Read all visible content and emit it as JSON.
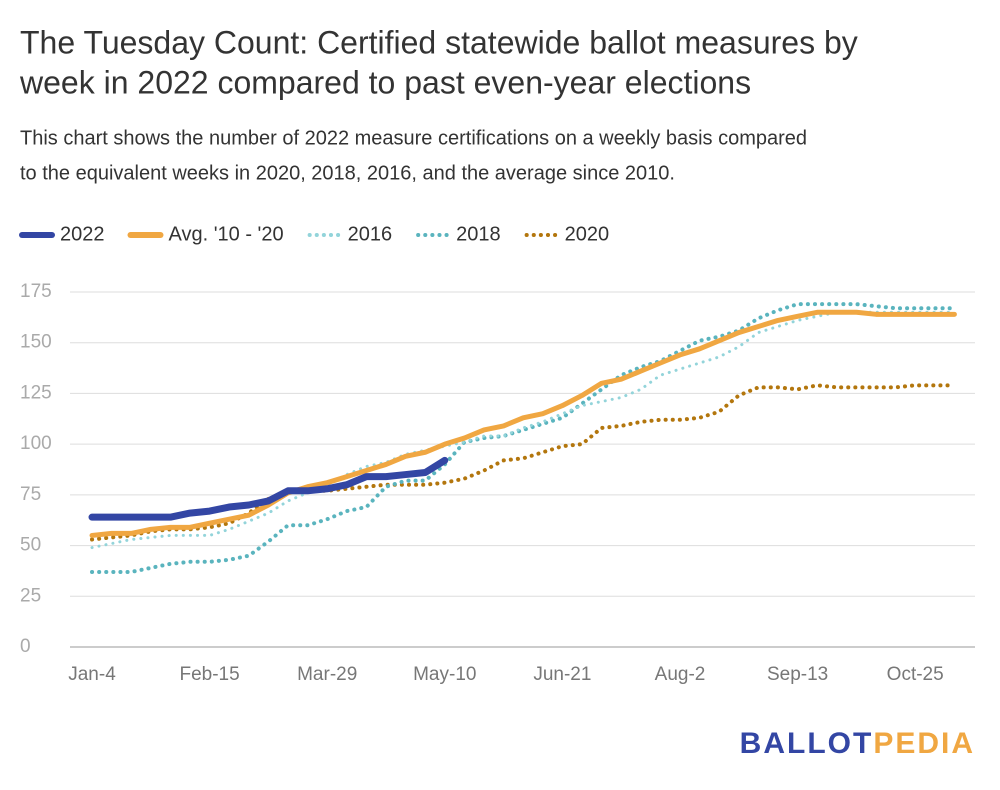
{
  "chart_data": {
    "type": "line",
    "title": [
      "The Tuesday Count: Certified statewide ballot measures by",
      "week in 2022 compared to past even-year elections"
    ],
    "subtitle": [
      "This chart shows the number of 2022 measure certifications on a weekly basis compared",
      "to the equivalent weeks in 2020, 2018, 2016, and the average since 2010."
    ],
    "categories": [
      "Jan-4",
      null,
      null,
      null,
      null,
      null,
      "Feb-15",
      null,
      null,
      null,
      null,
      null,
      "Mar-29",
      null,
      null,
      null,
      null,
      null,
      "May-10",
      null,
      null,
      null,
      null,
      null,
      "Jun-21",
      null,
      null,
      null,
      null,
      null,
      "Aug-2",
      null,
      null,
      null,
      null,
      null,
      "Sep-13",
      null,
      null,
      null,
      null,
      null,
      "Oct-25",
      null,
      null
    ],
    "series": [
      {
        "name": "2022",
        "color": "#3346a4",
        "style": "solid",
        "values": [
          64,
          64,
          64,
          64,
          64,
          66,
          67,
          69,
          70,
          72,
          77,
          77,
          78,
          80,
          84,
          84,
          85,
          86,
          92,
          null,
          null,
          null,
          null,
          null,
          null,
          null,
          null,
          null,
          null,
          null,
          null,
          null,
          null,
          null,
          null,
          null,
          null,
          null,
          null,
          null,
          null,
          null,
          null,
          null,
          null
        ]
      },
      {
        "name": "Avg. '10 - '20",
        "color": "#f0a742",
        "style": "solid",
        "values": [
          55,
          56,
          56,
          58,
          59,
          59,
          61,
          63,
          65,
          70,
          76,
          79,
          81,
          84,
          87,
          90,
          94,
          96,
          100,
          103,
          107,
          109,
          113,
          115,
          119,
          124,
          130,
          132,
          136,
          140,
          144,
          147,
          151,
          155,
          158,
          161,
          163,
          165,
          165,
          165,
          164,
          164,
          164,
          164,
          164
        ]
      },
      {
        "name": "2016",
        "color": "#93d4da",
        "style": "dotted",
        "values": [
          49,
          51,
          53,
          54,
          55,
          55,
          55,
          58,
          62,
          66,
          72,
          76,
          80,
          85,
          89,
          91,
          95,
          97,
          99,
          101,
          104,
          104,
          108,
          111,
          115,
          119,
          121,
          123,
          127,
          134,
          137,
          140,
          143,
          148,
          155,
          158,
          161,
          163,
          165,
          165,
          165,
          165,
          165,
          165,
          165
        ]
      },
      {
        "name": "2018",
        "color": "#5ab4be",
        "style": "dotted",
        "values": [
          37,
          37,
          37,
          39,
          41,
          42,
          42,
          43,
          45,
          52,
          60,
          60,
          63,
          67,
          69,
          79,
          82,
          82,
          90,
          101,
          103,
          104,
          107,
          110,
          113,
          120,
          127,
          134,
          138,
          141,
          146,
          151,
          153,
          156,
          162,
          166,
          169,
          169,
          169,
          169,
          168,
          167,
          167,
          167,
          167
        ]
      },
      {
        "name": "2020",
        "color": "#b3760d",
        "style": "dotted",
        "values": [
          53,
          54,
          55,
          57,
          58,
          58,
          59,
          61,
          66,
          73,
          76,
          77,
          77,
          78,
          79,
          80,
          80,
          80,
          81,
          83,
          87,
          92,
          93,
          96,
          99,
          100,
          108,
          109,
          111,
          112,
          112,
          113,
          116,
          124,
          128,
          128,
          127,
          129,
          128,
          128,
          128,
          128,
          129,
          129,
          129
        ]
      }
    ],
    "ylim": [
      0,
      175
    ],
    "yticks": [
      0,
      25,
      50,
      75,
      100,
      125,
      150,
      175
    ],
    "grid": true,
    "legend": "top",
    "logo": [
      {
        "text": "BALLOT",
        "color": "#3346a4"
      },
      {
        "text": "PEDIA",
        "color": "#f0a742"
      }
    ]
  }
}
